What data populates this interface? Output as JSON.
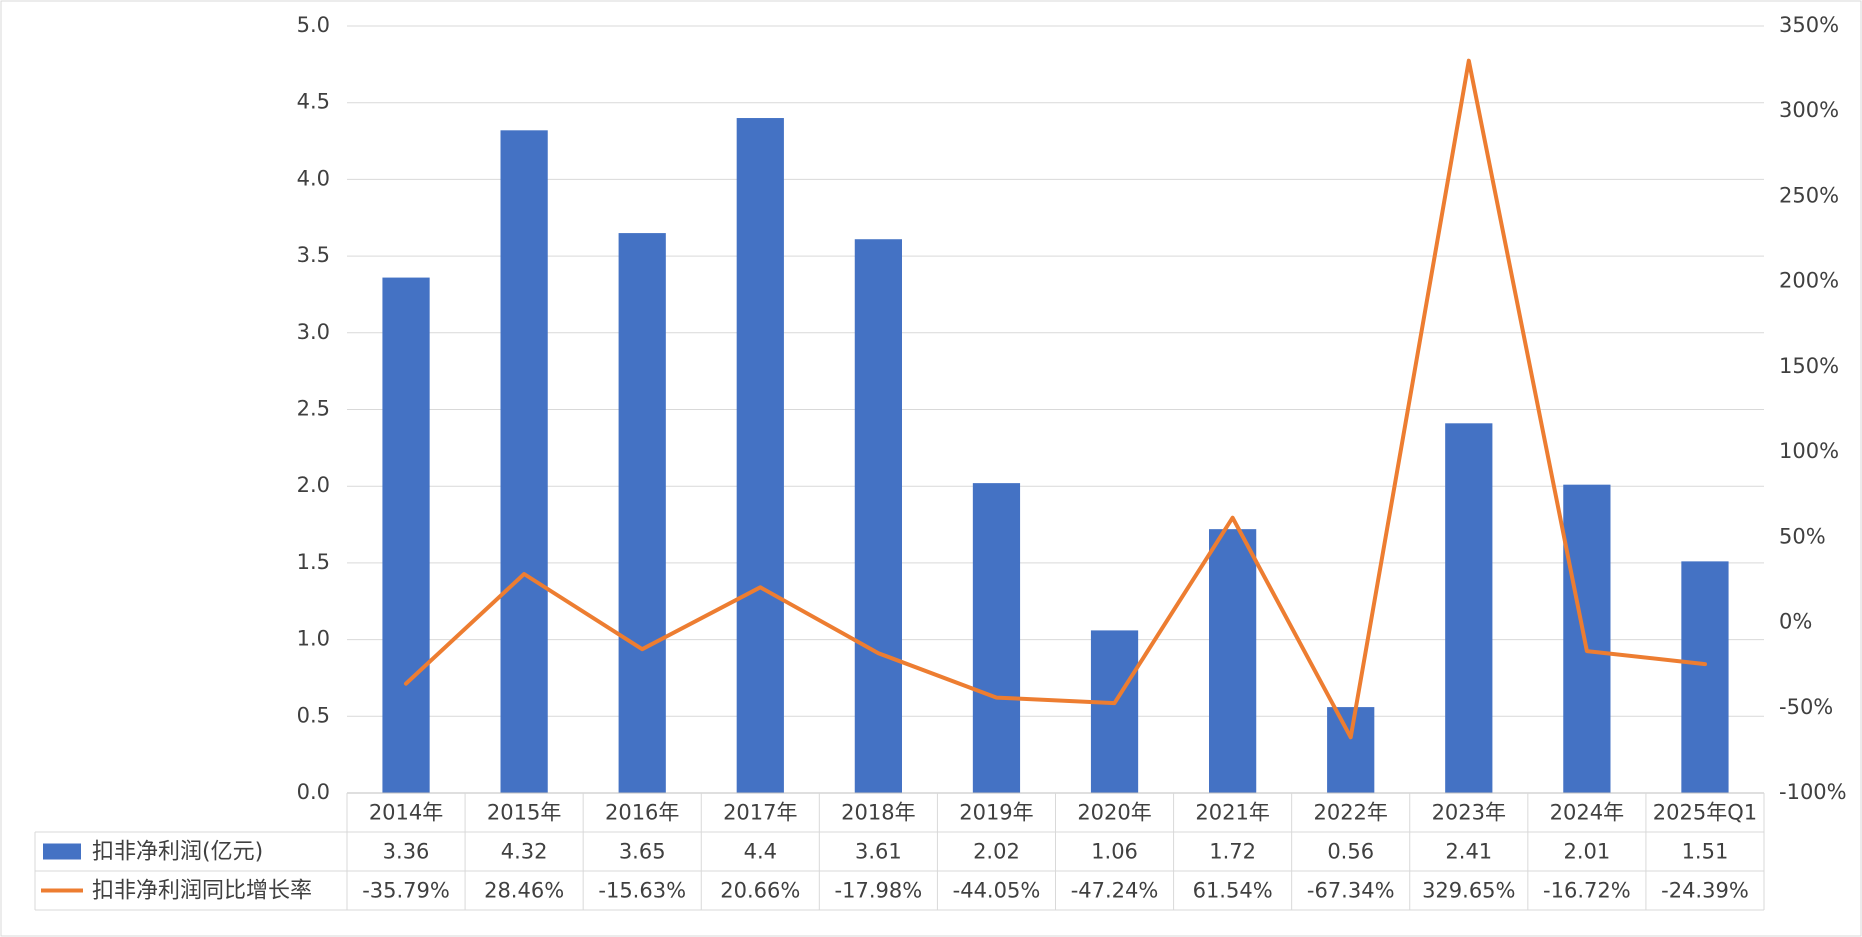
{
  "chart_data": {
    "type": "bar",
    "categories": [
      "2014年",
      "2015年",
      "2016年",
      "2017年",
      "2018年",
      "2019年",
      "2020年",
      "2021年",
      "2022年",
      "2023年",
      "2024年",
      "2025年Q1"
    ],
    "series": [
      {
        "name": "扣非净利润(亿元)",
        "type": "bar",
        "axis": "left",
        "color": "#4472C4",
        "values": [
          3.36,
          4.32,
          3.65,
          4.4,
          3.61,
          2.02,
          1.06,
          1.72,
          0.56,
          2.41,
          2.01,
          1.51
        ],
        "labels": [
          "3.36",
          "4.32",
          "3.65",
          "4.4",
          "3.61",
          "2.02",
          "1.06",
          "1.72",
          "0.56",
          "2.41",
          "2.01",
          "1.51"
        ]
      },
      {
        "name": "扣非净利润同比增长率",
        "type": "line",
        "axis": "right",
        "color": "#ED7D31",
        "values": [
          -35.79,
          28.46,
          -15.63,
          20.66,
          -17.98,
          -44.05,
          -47.24,
          61.54,
          -67.34,
          329.65,
          -16.72,
          -24.39
        ],
        "labels": [
          "-35.79%",
          "28.46%",
          "-15.63%",
          "20.66%",
          "-17.98%",
          "-44.05%",
          "-47.24%",
          "61.54%",
          "-67.34%",
          "329.65%",
          "-16.72%",
          "-24.39%"
        ]
      }
    ],
    "left_axis": {
      "ylim": [
        0,
        5
      ],
      "ticks": [
        "0.0",
        "0.5",
        "1.0",
        "1.5",
        "2.0",
        "2.5",
        "3.0",
        "3.5",
        "4.0",
        "4.5",
        "5.0"
      ]
    },
    "right_axis": {
      "ylim": [
        -100,
        350
      ],
      "ticks": [
        "-100%",
        "-50%",
        "0%",
        "50%",
        "100%",
        "150%",
        "200%",
        "250%",
        "300%",
        "350%"
      ]
    },
    "grid": true,
    "data_table": true,
    "title": "",
    "xlabel": "",
    "ylabel": ""
  }
}
